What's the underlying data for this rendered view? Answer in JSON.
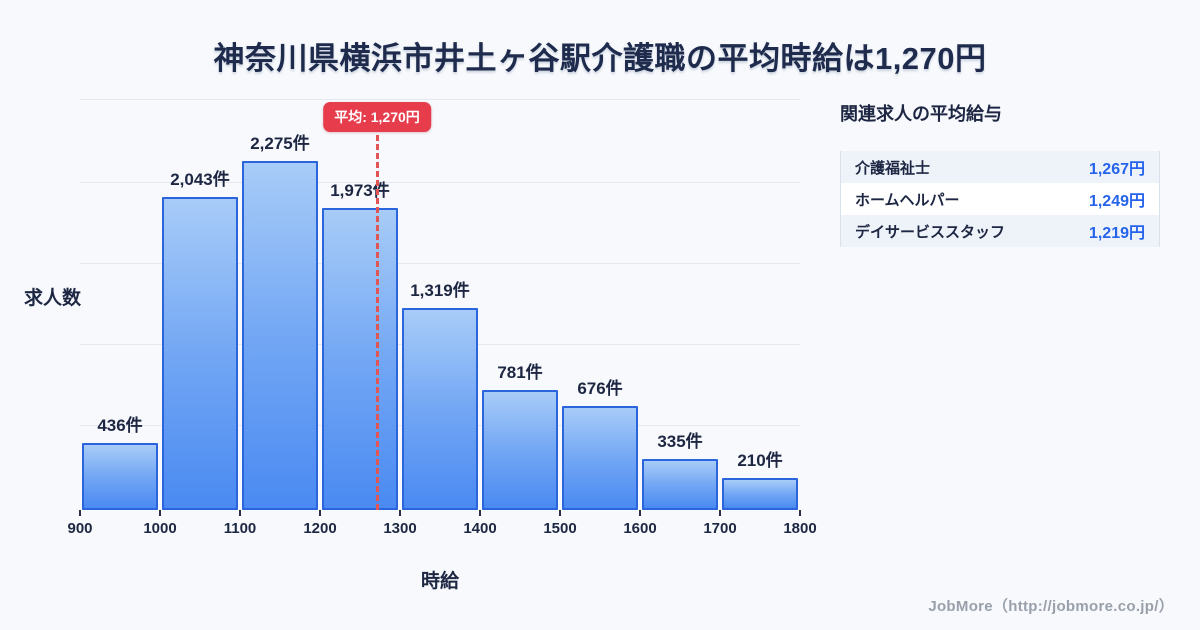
{
  "title": "神奈川県横浜市井土ヶ谷駅介護職の平均時給は1,270円",
  "chart_data": {
    "type": "bar",
    "title": "神奈川県横浜市井土ヶ谷駅介護職の平均時給は1,270円",
    "xlabel": "時給",
    "ylabel": "求人数",
    "x_min": 900,
    "x_step": 100,
    "tick_labels": [
      "900",
      "1000",
      "1100",
      "1200",
      "1300",
      "1400",
      "1500",
      "1600",
      "1700",
      "1800"
    ],
    "values": [
      436,
      2043,
      2275,
      1973,
      1319,
      781,
      676,
      335,
      210
    ],
    "bar_labels": [
      "436件",
      "2,043件",
      "2,275件",
      "1,973件",
      "1,319件",
      "781件",
      "676件",
      "335件",
      "210件"
    ],
    "ylim": [
      0,
      2740
    ],
    "grid": true,
    "average": {
      "value": 1270,
      "label": "平均: 1,270円"
    },
    "colors": {
      "bar_gradient_top": "#a8ccf8",
      "bar_gradient_bottom": "#4a8af2",
      "bar_border": "#2a65dd",
      "average_red": "#e73c4b",
      "text_dark": "#1d2642",
      "value_blue": "#2563eb",
      "background": "#f7f9fc"
    }
  },
  "side_panel": {
    "title": "関連求人の平均給与",
    "rows": [
      {
        "label": "介護福祉士",
        "value": "1,267円"
      },
      {
        "label": "ホームヘルパー",
        "value": "1,249円"
      },
      {
        "label": "デイサービススタッフ",
        "value": "1,219円"
      }
    ]
  },
  "footer": {
    "credit": "JobMore（http://jobmore.co.jp/）"
  }
}
